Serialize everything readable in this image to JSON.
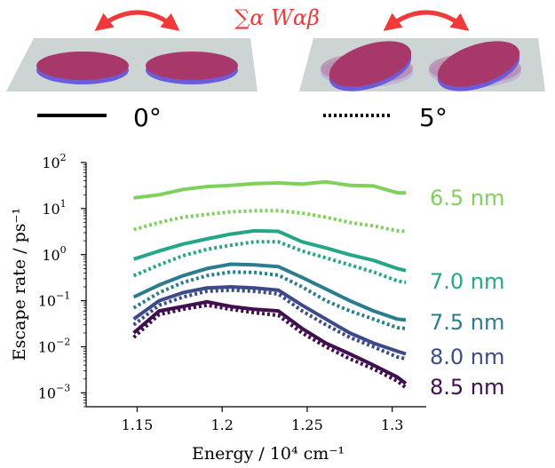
{
  "header": {
    "formula": "∑α Wαβ",
    "formula_color": "#f03a3a",
    "legend_solid_label": "0°",
    "legend_dotted_label": "5°"
  },
  "colors": {
    "disk_fill": "#a8386a",
    "disk_edge": "#6d5bd8",
    "substrate": "#cdd4d4",
    "arrow": "#f03a3a"
  },
  "chart_data": {
    "type": "line",
    "title": "",
    "xlabel": "Energy / 10⁴ cm⁻¹",
    "ylabel": "Escape rate / ps⁻¹",
    "xlim": [
      1.12,
      1.32
    ],
    "ylim": [
      0.0005,
      100
    ],
    "yscale": "log",
    "x_ticks": [
      "1.15",
      "1.2",
      "1.25",
      "1.3"
    ],
    "x_tick_values": [
      1.15,
      1.2,
      1.25,
      1.3
    ],
    "y_tick_values": [
      0.001,
      0.01,
      0.1,
      1,
      10,
      100
    ],
    "y_tick_bases": [
      "10",
      "10",
      "10",
      "10",
      "10",
      "10"
    ],
    "y_tick_exps": [
      "−3",
      "−2",
      "−1",
      "0",
      "1",
      "2"
    ],
    "x": [
      1.148,
      1.163,
      1.177,
      1.191,
      1.205,
      1.219,
      1.233,
      1.247,
      1.261,
      1.275,
      1.289,
      1.303,
      1.308
    ],
    "series": [
      {
        "name": "6.5 nm",
        "color": "#7ed15a",
        "style": "solid",
        "values": [
          17,
          20,
          26,
          30,
          32,
          35,
          36,
          34,
          38,
          32,
          31,
          22,
          22
        ]
      },
      {
        "color": "#7ed15a",
        "style": "dotted",
        "values": [
          3.5,
          5,
          6.5,
          7.5,
          8.5,
          9,
          9,
          8,
          6.5,
          5,
          4.2,
          3.3,
          3.2
        ]
      },
      {
        "name": "7.0 nm",
        "color": "#25a688",
        "style": "solid",
        "values": [
          0.8,
          1.2,
          1.7,
          2.2,
          2.8,
          3.3,
          3.2,
          1.9,
          1.4,
          1.0,
          0.75,
          0.5,
          0.45
        ]
      },
      {
        "color": "#25a688",
        "style": "dotted",
        "values": [
          0.35,
          0.6,
          0.95,
          1.3,
          1.6,
          1.9,
          1.9,
          1.2,
          0.85,
          0.6,
          0.42,
          0.27,
          0.25
        ]
      },
      {
        "name": "7.5 nm",
        "color": "#2b7c8e",
        "style": "solid",
        "values": [
          0.12,
          0.22,
          0.35,
          0.5,
          0.62,
          0.6,
          0.55,
          0.32,
          0.18,
          0.1,
          0.06,
          0.04,
          0.038
        ]
      },
      {
        "color": "#2b7c8e",
        "style": "dotted",
        "values": [
          0.07,
          0.15,
          0.25,
          0.35,
          0.42,
          0.41,
          0.36,
          0.2,
          0.1,
          0.06,
          0.04,
          0.026,
          0.025
        ]
      },
      {
        "name": "8.0 nm",
        "color": "#3d4a8a",
        "style": "solid",
        "values": [
          0.04,
          0.1,
          0.15,
          0.19,
          0.2,
          0.19,
          0.17,
          0.08,
          0.04,
          0.02,
          0.012,
          0.008,
          0.007
        ]
      },
      {
        "color": "#3d4a8a",
        "style": "dotted",
        "values": [
          0.03,
          0.08,
          0.12,
          0.16,
          0.17,
          0.16,
          0.14,
          0.06,
          0.03,
          0.016,
          0.01,
          0.006,
          0.0055
        ]
      },
      {
        "name": "8.5 nm",
        "color": "#3f0f4e",
        "style": "solid",
        "values": [
          0.02,
          0.06,
          0.075,
          0.095,
          0.075,
          0.065,
          0.06,
          0.025,
          0.012,
          0.007,
          0.004,
          0.0022,
          0.0016
        ]
      },
      {
        "color": "#3f0f4e",
        "style": "dotted",
        "values": [
          0.016,
          0.05,
          0.065,
          0.08,
          0.065,
          0.055,
          0.048,
          0.02,
          0.01,
          0.0055,
          0.0033,
          0.0018,
          0.0013
        ]
      }
    ]
  }
}
